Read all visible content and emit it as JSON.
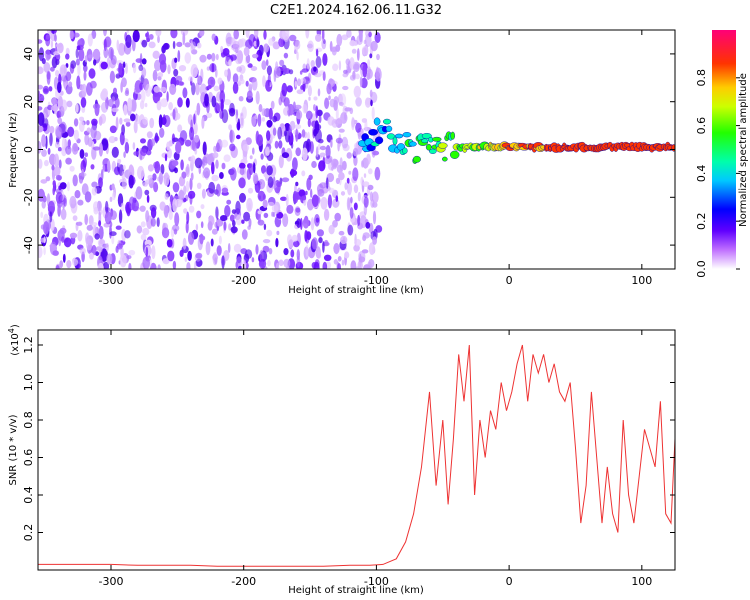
{
  "chart_data": [
    {
      "type": "heatmap",
      "title": "C2E1.2024.162.06.11.G32",
      "xlabel": "Height of straight line (km)",
      "ylabel": "Frequency (Hz)",
      "xlim": [
        -355,
        125
      ],
      "ylim": [
        -50,
        50
      ],
      "xticks": [
        -300,
        -200,
        -100,
        0,
        100
      ],
      "yticks": [
        -40,
        -20,
        0,
        20,
        40
      ],
      "colorbar": {
        "label": "Normalized spectral amplitude",
        "range": [
          0.0,
          1.0
        ],
        "ticks": [
          "0.0",
          "0.2",
          "0.4",
          "0.6",
          "0.8"
        ],
        "tick_values": [
          0.0,
          0.2,
          0.4,
          0.6,
          0.8
        ]
      },
      "features": {
        "noise_region_x": [
          -355,
          -98
        ],
        "signal_trace_frequency": 1,
        "signal_trace_x_start": -110
      }
    },
    {
      "type": "line",
      "xlabel": "Height of straight line (km)",
      "ylabel": "SNR (10 * v/v)",
      "yscale_label": "(x10",
      "yscale_exponent": "4",
      "yscale_suffix": ")",
      "xlim": [
        -355,
        125
      ],
      "ylim": [
        0,
        1.28
      ],
      "xticks": [
        -300,
        -200,
        -100,
        0,
        100
      ],
      "yticks": [
        0.2,
        0.4,
        0.6,
        0.8,
        1.0,
        1.2
      ],
      "ytick_labels": [
        "0.2",
        "0.4",
        "0.6",
        "0.8",
        "1.0",
        "1.2"
      ],
      "color": "#ee3333",
      "series": [
        {
          "x": [
            -355,
            -340,
            -320,
            -300,
            -280,
            -260,
            -240,
            -220,
            -200,
            -180,
            -160,
            -140,
            -120,
            -105,
            -95,
            -85,
            -78,
            -72,
            -66,
            -60,
            -55,
            -50,
            -46,
            -42,
            -38,
            -34,
            -30,
            -26,
            -22,
            -18,
            -14,
            -10,
            -6,
            -2,
            2,
            6,
            10,
            14,
            18,
            22,
            26,
            30,
            34,
            38,
            42,
            46,
            50,
            54,
            58,
            62,
            66,
            70,
            74,
            78,
            82,
            86,
            90,
            94,
            98,
            102,
            106,
            110,
            114,
            118,
            122,
            125
          ],
          "y": [
            0.03,
            0.03,
            0.03,
            0.03,
            0.025,
            0.025,
            0.025,
            0.02,
            0.02,
            0.02,
            0.02,
            0.02,
            0.025,
            0.025,
            0.03,
            0.06,
            0.15,
            0.3,
            0.55,
            0.95,
            0.45,
            0.8,
            0.35,
            0.7,
            1.15,
            0.9,
            1.2,
            0.4,
            0.8,
            0.6,
            0.85,
            0.75,
            1.0,
            0.85,
            0.95,
            1.1,
            1.2,
            0.9,
            1.15,
            1.05,
            1.15,
            1.0,
            1.1,
            0.95,
            0.9,
            1.0,
            0.65,
            0.25,
            0.45,
            0.95,
            0.6,
            0.25,
            0.55,
            0.3,
            0.2,
            0.8,
            0.4,
            0.25,
            0.5,
            0.75,
            0.65,
            0.55,
            0.9,
            0.3,
            0.25,
            0.7
          ]
        }
      ]
    }
  ]
}
